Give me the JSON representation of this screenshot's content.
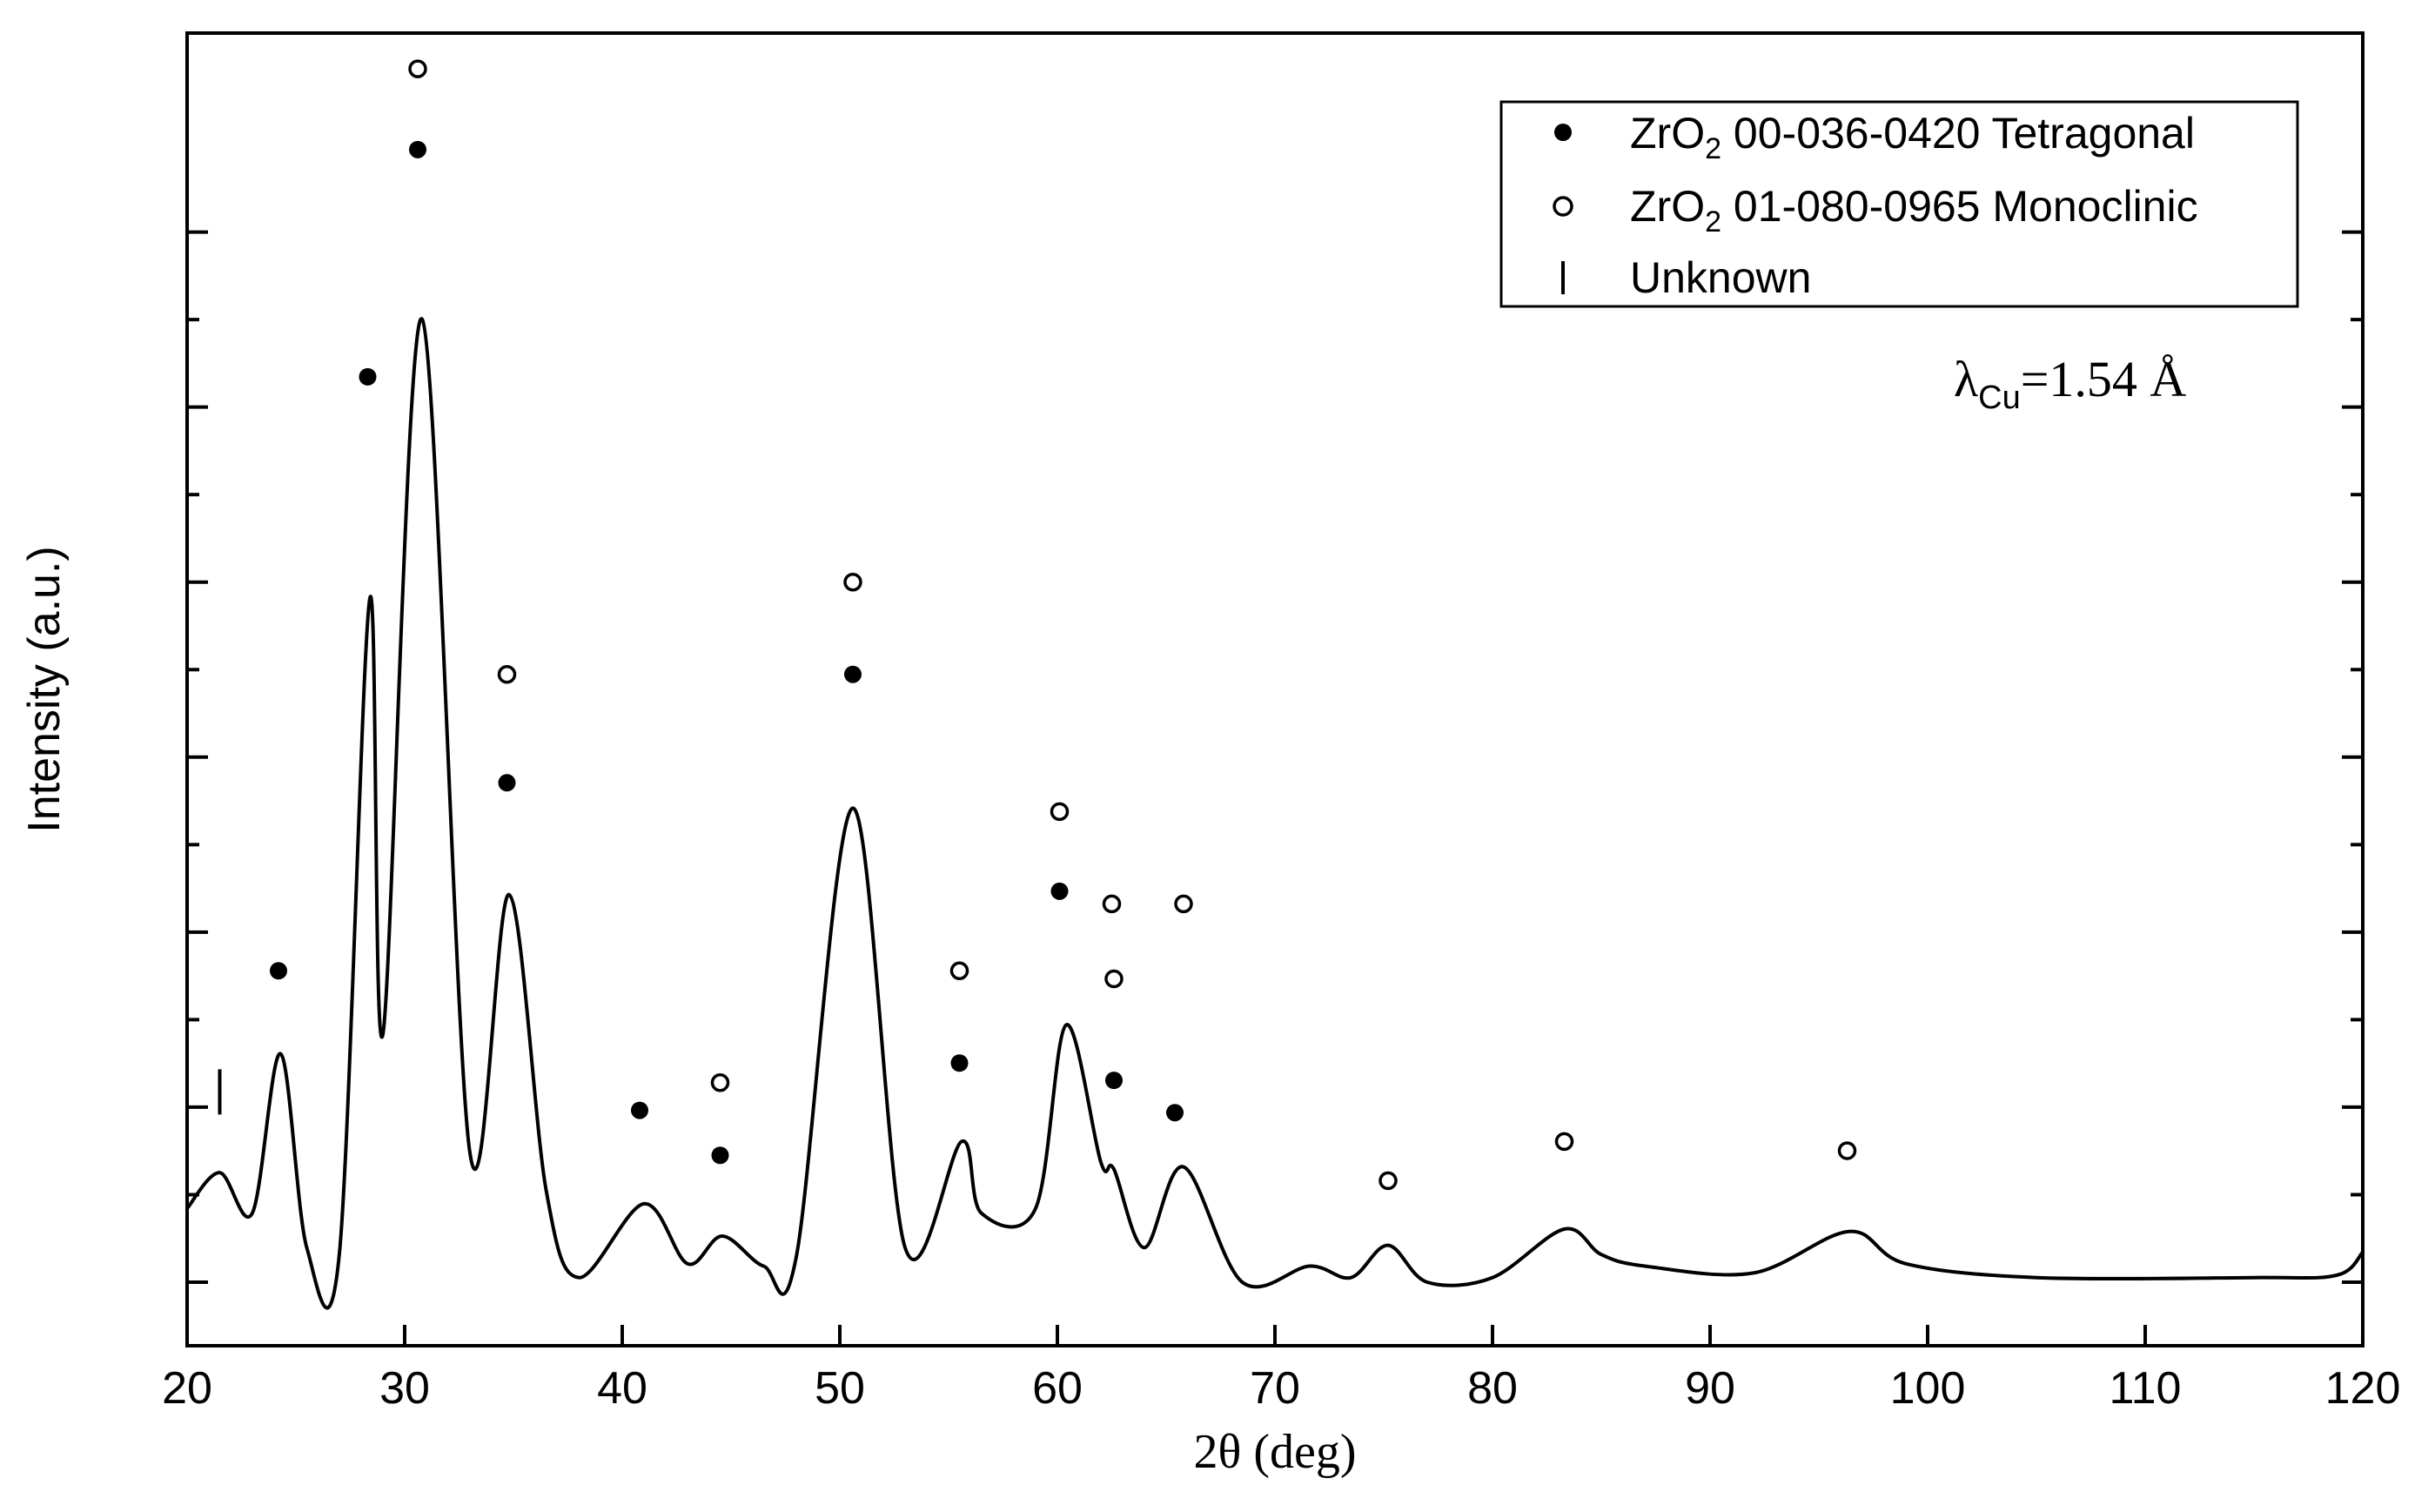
{
  "chart_data": {
    "type": "line",
    "title": "",
    "xlabel_theta": "θ",
    "xlabel": "2θ (deg)",
    "ylabel": "Intensity (a.u.)",
    "xlim": [
      20,
      120
    ],
    "ylim": [
      0,
      1.0
    ],
    "x_ticks": [
      20,
      30,
      40,
      50,
      60,
      70,
      80,
      90,
      100,
      110,
      120
    ],
    "y_tick_count": 7,
    "y_tick_labels": false,
    "annotation": {
      "lambda": "λ",
      "sub": "Cu",
      "value": "=1.54 Å"
    },
    "legend": {
      "position": "top-right",
      "entries": [
        {
          "marker": "filled-circle",
          "formula": "ZrO",
          "sub": "2",
          "label": "00-036-0420 Tetragonal"
        },
        {
          "marker": "open-circle",
          "formula": "ZrO",
          "sub": "2",
          "label": "01-080-0965 Monoclinic"
        },
        {
          "marker": "bar",
          "formula": "",
          "sub": "",
          "label": "Unknown"
        }
      ]
    },
    "pattern": [
      [
        20.0,
        0.064
      ],
      [
        21.5,
        0.095
      ],
      [
        23.0,
        0.06
      ],
      [
        24.3,
        0.198
      ],
      [
        25.5,
        0.03
      ],
      [
        27.0,
        0.025
      ],
      [
        28.4,
        0.593
      ],
      [
        29.0,
        0.215
      ],
      [
        30.8,
        0.835
      ],
      [
        33.0,
        0.112
      ],
      [
        34.8,
        0.336
      ],
      [
        36.5,
        0.08
      ],
      [
        38.0,
        0.004
      ],
      [
        41.0,
        0.068
      ],
      [
        43.0,
        0.016
      ],
      [
        44.6,
        0.04
      ],
      [
        46.5,
        0.014
      ],
      [
        48.0,
        0.022
      ],
      [
        50.6,
        0.411
      ],
      [
        53.0,
        0.03
      ],
      [
        55.6,
        0.122
      ],
      [
        56.5,
        0.06
      ],
      [
        59.0,
        0.064
      ],
      [
        60.4,
        0.223
      ],
      [
        62.0,
        0.104
      ],
      [
        62.6,
        0.098
      ],
      [
        64.0,
        0.03
      ],
      [
        65.8,
        0.1
      ],
      [
        68.5,
        0.0
      ],
      [
        71.6,
        0.014
      ],
      [
        73.5,
        0.004
      ],
      [
        75.2,
        0.032
      ],
      [
        77.0,
        0.0
      ],
      [
        80.0,
        0.004
      ],
      [
        83.3,
        0.046
      ],
      [
        85.0,
        0.024
      ],
      [
        87.0,
        0.014
      ],
      [
        92.0,
        0.008
      ],
      [
        96.4,
        0.044
      ],
      [
        99.0,
        0.016
      ],
      [
        105.0,
        0.004
      ],
      [
        115.0,
        0.004
      ],
      [
        118.8,
        0.006
      ],
      [
        120.0,
        0.026
      ]
    ],
    "series": [
      {
        "name": "ZrO2 00-036-0420 Tetragonal",
        "marker": "filled-circle",
        "x": [
          24.2,
          28.3,
          30.6,
          34.7,
          40.8,
          44.5,
          50.6,
          55.5,
          60.1,
          62.6,
          65.4
        ],
        "y": [
          0.27,
          0.785,
          0.982,
          0.433,
          0.149,
          0.11,
          0.527,
          0.19,
          0.339,
          0.175,
          0.147
        ]
      },
      {
        "name": "ZrO2 01-080-0965 Monoclinic",
        "marker": "open-circle",
        "x": [
          30.6,
          34.7,
          44.5,
          50.6,
          55.5,
          60.1,
          62.5,
          62.6,
          65.8,
          75.2,
          83.3,
          96.3
        ],
        "y": [
          1.052,
          0.527,
          0.173,
          0.607,
          0.27,
          0.408,
          0.328,
          0.263,
          0.328,
          0.088,
          0.122,
          0.114
        ]
      },
      {
        "name": "Unknown",
        "marker": "bar",
        "x": [
          21.5
        ],
        "y": [
          0.165
        ]
      }
    ]
  }
}
